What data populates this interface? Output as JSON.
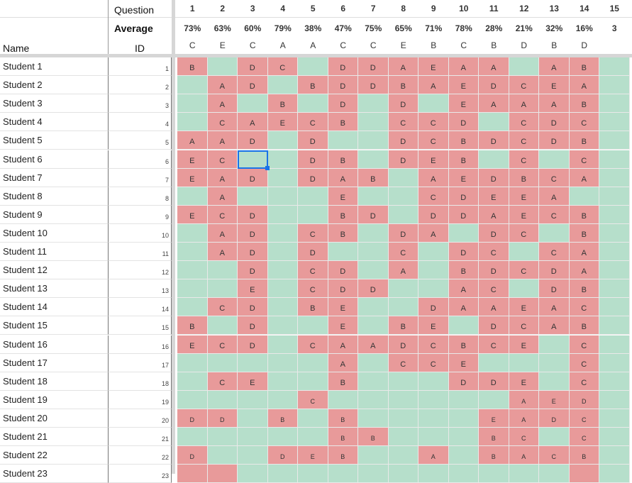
{
  "header": {
    "question_label": "Question",
    "average_label": "Average",
    "name_label": "Name",
    "id_label": "ID"
  },
  "questions": [
    {
      "num": "1",
      "avg": "73%",
      "key": "C"
    },
    {
      "num": "2",
      "avg": "63%",
      "key": "E"
    },
    {
      "num": "3",
      "avg": "60%",
      "key": "C"
    },
    {
      "num": "4",
      "avg": "79%",
      "key": "A"
    },
    {
      "num": "5",
      "avg": "38%",
      "key": "A"
    },
    {
      "num": "6",
      "avg": "47%",
      "key": "C"
    },
    {
      "num": "7",
      "avg": "75%",
      "key": "C"
    },
    {
      "num": "8",
      "avg": "65%",
      "key": "E"
    },
    {
      "num": "9",
      "avg": "71%",
      "key": "B"
    },
    {
      "num": "10",
      "avg": "78%",
      "key": "C"
    },
    {
      "num": "11",
      "avg": "28%",
      "key": "B"
    },
    {
      "num": "12",
      "avg": "21%",
      "key": "D"
    },
    {
      "num": "13",
      "avg": "32%",
      "key": "B"
    },
    {
      "num": "14",
      "avg": "16%",
      "key": "D"
    },
    {
      "num": "15",
      "avg": "3",
      "key": ""
    }
  ],
  "students": [
    {
      "name": "Student 1",
      "id": "1",
      "answers": [
        "B",
        "",
        "D",
        "C",
        "",
        "D",
        "D",
        "A",
        "E",
        "A",
        "A",
        "",
        "A",
        "B",
        ""
      ]
    },
    {
      "name": "Student 2",
      "id": "2",
      "answers": [
        "",
        "A",
        "D",
        "",
        "B",
        "D",
        "D",
        "B",
        "A",
        "E",
        "D",
        "C",
        "E",
        "A",
        ""
      ]
    },
    {
      "name": "Student 3",
      "id": "3",
      "answers": [
        "",
        "A",
        "",
        "B",
        "",
        "D",
        "",
        "D",
        "",
        "E",
        "A",
        "A",
        "A",
        "B",
        ""
      ]
    },
    {
      "name": "Student 4",
      "id": "4",
      "answers": [
        "",
        "C",
        "A",
        "E",
        "C",
        "B",
        "",
        "C",
        "C",
        "D",
        "",
        "C",
        "D",
        "C",
        ""
      ]
    },
    {
      "name": "Student 5",
      "id": "5",
      "answers": [
        "A",
        "A",
        "D",
        "",
        "D",
        "",
        "",
        "D",
        "C",
        "B",
        "D",
        "C",
        "D",
        "B",
        ""
      ]
    },
    {
      "name": "Student 6",
      "id": "6",
      "answers": [
        "E",
        "C",
        "",
        "",
        "D",
        "B",
        "",
        "D",
        "E",
        "B",
        "",
        "C",
        "",
        "C",
        ""
      ]
    },
    {
      "name": "Student 7",
      "id": "7",
      "answers": [
        "E",
        "A",
        "D",
        "",
        "D",
        "A",
        "B",
        "",
        "A",
        "E",
        "D",
        "B",
        "C",
        "A",
        ""
      ]
    },
    {
      "name": "Student 8",
      "id": "8",
      "answers": [
        "",
        "A",
        "",
        "",
        "",
        "E",
        "",
        "",
        "C",
        "D",
        "E",
        "E",
        "A",
        "",
        ""
      ]
    },
    {
      "name": "Student 9",
      "id": "9",
      "answers": [
        "E",
        "C",
        "D",
        "",
        "",
        "B",
        "D",
        "",
        "D",
        "D",
        "A",
        "E",
        "C",
        "B",
        ""
      ]
    },
    {
      "name": "Student 10",
      "id": "10",
      "answers": [
        "",
        "A",
        "D",
        "",
        "C",
        "B",
        "",
        "D",
        "A",
        "",
        "D",
        "C",
        "",
        "B",
        ""
      ]
    },
    {
      "name": "Student 11",
      "id": "11",
      "answers": [
        "",
        "A",
        "D",
        "",
        "D",
        "",
        "",
        "C",
        "",
        "D",
        "C",
        "",
        "C",
        "A",
        ""
      ]
    },
    {
      "name": "Student 12",
      "id": "12",
      "answers": [
        "",
        "",
        "D",
        "",
        "C",
        "D",
        "",
        "A",
        "",
        "B",
        "D",
        "C",
        "D",
        "A",
        ""
      ]
    },
    {
      "name": "Student 13",
      "id": "13",
      "answers": [
        "",
        "",
        "E",
        "",
        "C",
        "D",
        "D",
        "",
        "",
        "A",
        "C",
        "",
        "D",
        "B",
        ""
      ]
    },
    {
      "name": "Student 14",
      "id": "14",
      "answers": [
        "",
        "C",
        "D",
        "",
        "B",
        "E",
        "",
        "",
        "D",
        "A",
        "A",
        "E",
        "A",
        "C",
        ""
      ]
    },
    {
      "name": "Student 15",
      "id": "15",
      "answers": [
        "B",
        "",
        "D",
        "",
        "",
        "E",
        "",
        "B",
        "E",
        "",
        "D",
        "C",
        "A",
        "B",
        ""
      ]
    },
    {
      "name": "Student 16",
      "id": "16",
      "answers": [
        "E",
        "C",
        "D",
        "",
        "C",
        "A",
        "A",
        "D",
        "C",
        "B",
        "C",
        "E",
        "",
        "C",
        ""
      ]
    },
    {
      "name": "Student 17",
      "id": "17",
      "answers": [
        "",
        "",
        "",
        "",
        "",
        "A",
        "",
        "C",
        "C",
        "E",
        "",
        "",
        "",
        "C",
        ""
      ]
    },
    {
      "name": "Student 18",
      "id": "18",
      "answers": [
        "",
        "C",
        "E",
        "",
        "",
        "B",
        "",
        "",
        "",
        "D",
        "D",
        "E",
        "",
        "C",
        ""
      ]
    },
    {
      "name": "Student 19",
      "id": "19",
      "answers": [
        "",
        "",
        "",
        "",
        "C",
        "",
        "",
        "",
        "",
        "",
        "",
        "A",
        "E",
        "D",
        ""
      ]
    },
    {
      "name": "Student 20",
      "id": "20",
      "answers": [
        "D",
        "D",
        "",
        "B",
        "",
        "B",
        "",
        "",
        "",
        "",
        "E",
        "A",
        "D",
        "C",
        ""
      ]
    },
    {
      "name": "Student 21",
      "id": "21",
      "answers": [
        "",
        "",
        "",
        "",
        "",
        "B",
        "B",
        "",
        "",
        "",
        "B",
        "C",
        "",
        "C",
        ""
      ]
    },
    {
      "name": "Student 22",
      "id": "22",
      "answers": [
        "D",
        "",
        "",
        "D",
        "E",
        "B",
        "",
        "",
        "A",
        "",
        "B",
        "A",
        "C",
        "B",
        ""
      ]
    },
    {
      "name": "Student 23",
      "id": "23",
      "answers": [
        "",
        "",
        "",
        "",
        "",
        "",
        "",
        "",
        "",
        "",
        "",
        "",
        "",
        "",
        ""
      ]
    }
  ],
  "wrong": [
    [
      1,
      0,
      1,
      1,
      0,
      1,
      1,
      1,
      1,
      1,
      1,
      0,
      1,
      1,
      0
    ],
    [
      0,
      1,
      1,
      0,
      1,
      1,
      1,
      1,
      1,
      1,
      1,
      1,
      1,
      1,
      0
    ],
    [
      0,
      1,
      0,
      1,
      0,
      1,
      0,
      1,
      0,
      1,
      1,
      1,
      1,
      1,
      0
    ],
    [
      0,
      1,
      1,
      1,
      1,
      1,
      0,
      1,
      1,
      1,
      0,
      1,
      1,
      1,
      0
    ],
    [
      1,
      1,
      1,
      0,
      1,
      0,
      0,
      1,
      1,
      1,
      1,
      1,
      1,
      1,
      0
    ],
    [
      1,
      1,
      0,
      0,
      1,
      1,
      0,
      1,
      1,
      1,
      0,
      1,
      0,
      1,
      0
    ],
    [
      1,
      1,
      1,
      0,
      1,
      1,
      1,
      0,
      1,
      1,
      1,
      1,
      1,
      1,
      0
    ],
    [
      0,
      1,
      0,
      0,
      0,
      1,
      0,
      0,
      1,
      1,
      1,
      1,
      1,
      0,
      0
    ],
    [
      1,
      1,
      1,
      0,
      0,
      1,
      1,
      0,
      1,
      1,
      1,
      1,
      1,
      1,
      0
    ],
    [
      0,
      1,
      1,
      0,
      1,
      1,
      0,
      1,
      1,
      0,
      1,
      1,
      0,
      1,
      0
    ],
    [
      0,
      1,
      1,
      0,
      1,
      0,
      0,
      1,
      0,
      1,
      1,
      0,
      1,
      1,
      0
    ],
    [
      0,
      0,
      1,
      0,
      1,
      1,
      0,
      1,
      0,
      1,
      1,
      1,
      1,
      1,
      0
    ],
    [
      0,
      0,
      1,
      0,
      1,
      1,
      1,
      0,
      0,
      1,
      1,
      0,
      1,
      1,
      0
    ],
    [
      0,
      1,
      1,
      0,
      1,
      1,
      0,
      0,
      1,
      1,
      1,
      1,
      1,
      1,
      0
    ],
    [
      1,
      0,
      1,
      0,
      0,
      1,
      0,
      1,
      1,
      0,
      1,
      1,
      1,
      1,
      0
    ],
    [
      1,
      1,
      1,
      0,
      1,
      1,
      1,
      1,
      1,
      1,
      1,
      1,
      0,
      1,
      0
    ],
    [
      0,
      0,
      0,
      0,
      0,
      1,
      0,
      1,
      1,
      1,
      0,
      0,
      0,
      1,
      0
    ],
    [
      0,
      1,
      1,
      0,
      0,
      1,
      0,
      0,
      0,
      1,
      1,
      1,
      0,
      1,
      0
    ],
    [
      0,
      0,
      0,
      0,
      1,
      0,
      0,
      0,
      0,
      0,
      0,
      1,
      1,
      1,
      0
    ],
    [
      1,
      1,
      0,
      1,
      0,
      1,
      0,
      0,
      0,
      0,
      1,
      1,
      1,
      1,
      0
    ],
    [
      0,
      0,
      0,
      0,
      0,
      1,
      1,
      0,
      0,
      0,
      1,
      1,
      0,
      1,
      0
    ],
    [
      1,
      0,
      0,
      1,
      1,
      1,
      0,
      0,
      1,
      0,
      1,
      1,
      1,
      1,
      0
    ],
    [
      1,
      1,
      0,
      0,
      0,
      0,
      0,
      0,
      0,
      0,
      0,
      0,
      0,
      1,
      0
    ]
  ],
  "selected_cell": {
    "student_index": 5,
    "question_index": 2
  },
  "colors": {
    "wrong": "#e89a9a",
    "right": "#b6dfcb",
    "selection": "#1a73e8"
  }
}
